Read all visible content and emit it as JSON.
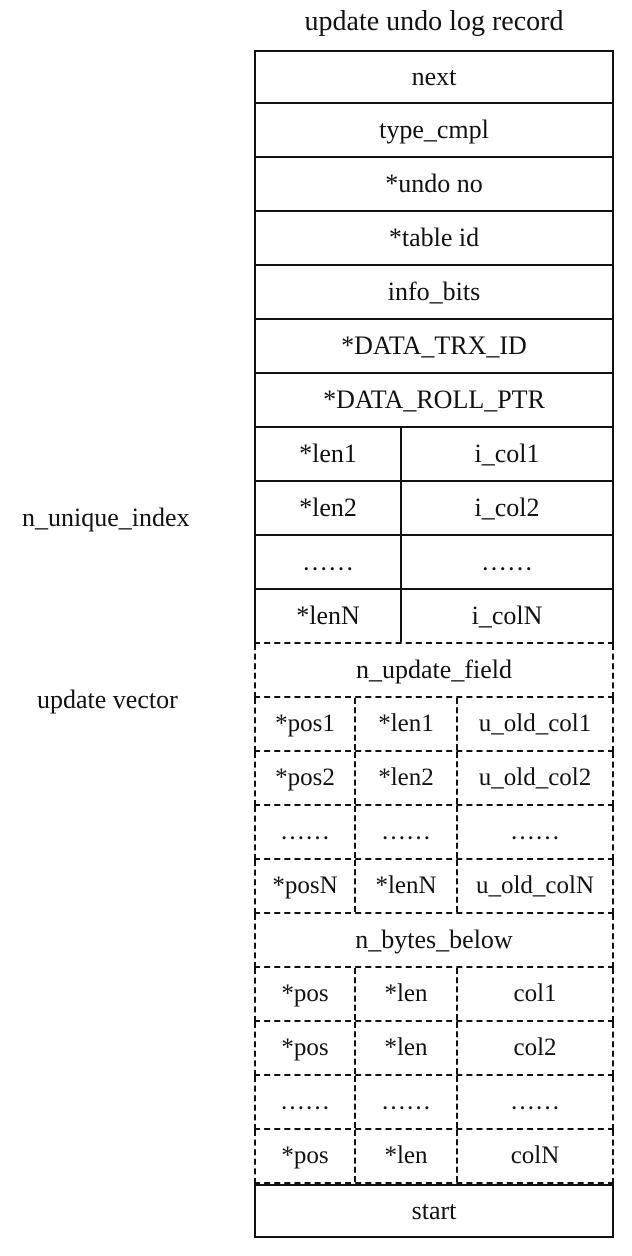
{
  "title": "update undo log record",
  "side_labels": {
    "unique_index": "n_unique_index",
    "update_vector": "update vector"
  },
  "header_rows": [
    "next",
    "type_cmpl",
    "*undo no",
    "*table id",
    "info_bits",
    "*DATA_TRX_ID",
    "*DATA_ROLL_PTR"
  ],
  "unique_index_rows": [
    {
      "len": "*len1",
      "col": "i_col1"
    },
    {
      "len": "*len2",
      "col": "i_col2"
    },
    {
      "len": "……",
      "col": "……"
    },
    {
      "len": "*lenN",
      "col": "i_colN"
    }
  ],
  "update_vector": {
    "header": "n_update_field",
    "rows": [
      {
        "pos": "*pos1",
        "len": "*len1",
        "col": "u_old_col1"
      },
      {
        "pos": "*pos2",
        "len": "*len2",
        "col": "u_old_col2"
      },
      {
        "pos": "……",
        "len": "……",
        "col": "……"
      },
      {
        "pos": "*posN",
        "len": "*lenN",
        "col": "u_old_colN"
      }
    ]
  },
  "bytes_below": {
    "header": "n_bytes_below",
    "rows": [
      {
        "pos": "*pos",
        "len": "*len",
        "col": "col1"
      },
      {
        "pos": "*pos",
        "len": "*len",
        "col": "col2"
      },
      {
        "pos": "……",
        "len": "……",
        "col": "……"
      },
      {
        "pos": "*pos",
        "len": "*len",
        "col": "colN"
      }
    ]
  },
  "footer": "start"
}
